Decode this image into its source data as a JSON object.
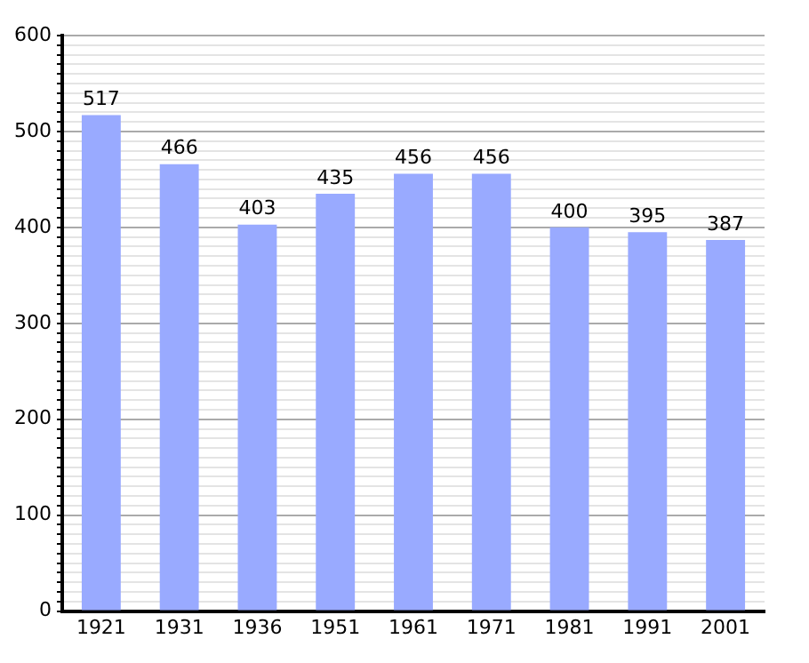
{
  "chart_data": {
    "type": "bar",
    "categories": [
      "1921",
      "1931",
      "1936",
      "1951",
      "1961",
      "1971",
      "1981",
      "1991",
      "2001"
    ],
    "values": [
      517,
      466,
      403,
      435,
      456,
      456,
      400,
      395,
      387
    ],
    "color": "#99aaff",
    "data_labels": true,
    "grid": "y",
    "ylim": [
      0,
      600
    ],
    "yticks": [
      0,
      {
        "value": 10,
        "label": null
      },
      {
        "value": 20,
        "label": null
      },
      {
        "value": 30,
        "label": null
      },
      {
        "value": 40,
        "label": null
      },
      {
        "value": 50,
        "label": null
      },
      {
        "value": 60,
        "label": null
      },
      {
        "value": 70,
        "label": null
      },
      {
        "value": 80,
        "label": null
      },
      {
        "value": 90,
        "label": null
      },
      100,
      {
        "value": 110,
        "label": null
      },
      {
        "value": 120,
        "label": null
      },
      {
        "value": 130,
        "label": null
      },
      {
        "value": 140,
        "label": null
      },
      {
        "value": 150,
        "label": null
      },
      {
        "value": 160,
        "label": null
      },
      {
        "value": 170,
        "label": null
      },
      {
        "value": 180,
        "label": null
      },
      {
        "value": 190,
        "label": null
      },
      200,
      {
        "value": 210,
        "label": null
      },
      {
        "value": 220,
        "label": null
      },
      {
        "value": 230,
        "label": null
      },
      {
        "value": 240,
        "label": null
      },
      {
        "value": 250,
        "label": null
      },
      {
        "value": 260,
        "label": null
      },
      {
        "value": 270,
        "label": null
      },
      {
        "value": 280,
        "label": null
      },
      {
        "value": 290,
        "label": null
      },
      300,
      {
        "value": 310,
        "label": null
      },
      {
        "value": 320,
        "label": null
      },
      {
        "value": 330,
        "label": null
      },
      {
        "value": 340,
        "label": null
      },
      {
        "value": 350,
        "label": null
      },
      {
        "value": 360,
        "label": null
      },
      {
        "value": 370,
        "label": null
      },
      {
        "value": 380,
        "label": null
      },
      {
        "value": 390,
        "label": null
      },
      400,
      {
        "value": 410,
        "label": null
      },
      {
        "value": 420,
        "label": null
      },
      {
        "value": 430,
        "label": null
      },
      {
        "value": 440,
        "label": null
      },
      {
        "value": 450,
        "label": null
      },
      {
        "value": 460,
        "label": null
      },
      {
        "value": 470,
        "label": null
      },
      {
        "value": 480,
        "label": null
      },
      {
        "value": 490,
        "label": null
      },
      500,
      {
        "value": 510,
        "label": null
      },
      {
        "value": 520,
        "label": null
      },
      {
        "value": 530,
        "label": null
      },
      {
        "value": 540,
        "label": null
      },
      {
        "value": 550,
        "label": null
      },
      {
        "value": 560,
        "label": null
      },
      {
        "value": 570,
        "label": null
      },
      {
        "value": 580,
        "label": null
      },
      {
        "value": 590,
        "label": null
      },
      600
    ]
  }
}
